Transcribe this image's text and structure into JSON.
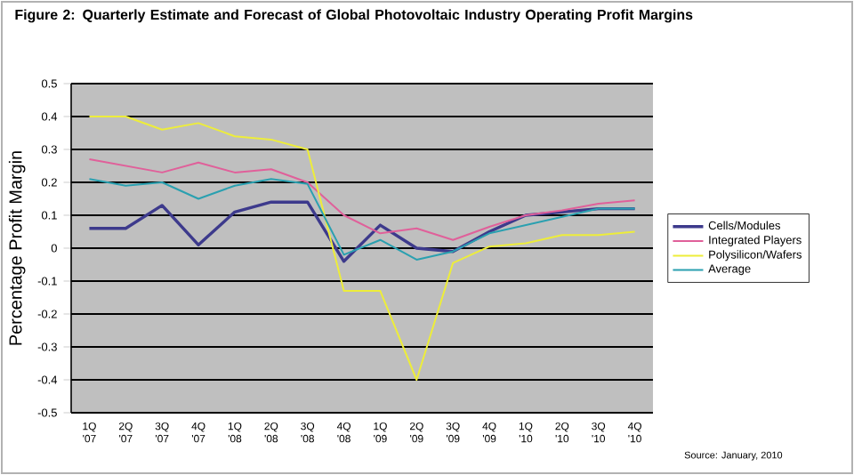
{
  "chart_data": {
    "type": "line",
    "title": "Figure 2: Quarterly Estimate and Forecast of Global Photovoltaic Industry Operating Profit Margins",
    "ylabel": "Percentage Profit Margin",
    "categories": [
      "1Q '07",
      "2Q '07",
      "3Q '07",
      "4Q '07",
      "1Q '08",
      "2Q '08",
      "3Q '08",
      "4Q '08",
      "1Q '09",
      "2Q '09",
      "3Q '09",
      "4Q '09",
      "1Q '10",
      "2Q '10",
      "3Q '10",
      "4Q '10"
    ],
    "series": [
      {
        "name": "Cells/Modules",
        "color": "#3d3a8c",
        "values": [
          0.06,
          0.06,
          0.13,
          0.01,
          0.11,
          0.14,
          0.14,
          -0.04,
          0.07,
          0.0,
          -0.01,
          0.05,
          0.1,
          0.11,
          0.12,
          0.12
        ]
      },
      {
        "name": "Integrated Players",
        "color": "#e0609a",
        "values": [
          0.27,
          0.25,
          0.23,
          0.26,
          0.23,
          0.24,
          0.2,
          0.1,
          0.045,
          0.06,
          0.025,
          0.065,
          0.1,
          0.115,
          0.135,
          0.145
        ]
      },
      {
        "name": "Polysilicon/Wafers",
        "color": "#eded3a",
        "values": [
          0.4,
          0.4,
          0.36,
          0.38,
          0.34,
          0.33,
          0.3,
          -0.13,
          -0.13,
          -0.4,
          -0.045,
          0.005,
          0.015,
          0.04,
          0.04,
          0.05
        ]
      },
      {
        "name": "Average",
        "color": "#2aa0b0",
        "values": [
          0.21,
          0.19,
          0.2,
          0.15,
          0.19,
          0.21,
          0.195,
          -0.02,
          0.025,
          -0.035,
          -0.01,
          0.045,
          0.07,
          0.095,
          0.12,
          0.12
        ]
      }
    ],
    "ylim": [
      -0.5,
      0.5
    ],
    "yticks": [
      -0.5,
      -0.4,
      -0.3,
      -0.2,
      -0.1,
      0,
      0.1,
      0.2,
      0.3,
      0.4,
      0.5
    ],
    "grid": "y",
    "legend": "right",
    "marker": "none",
    "line_style": "solid",
    "annotations": [
      "Source: January, 2010"
    ]
  }
}
